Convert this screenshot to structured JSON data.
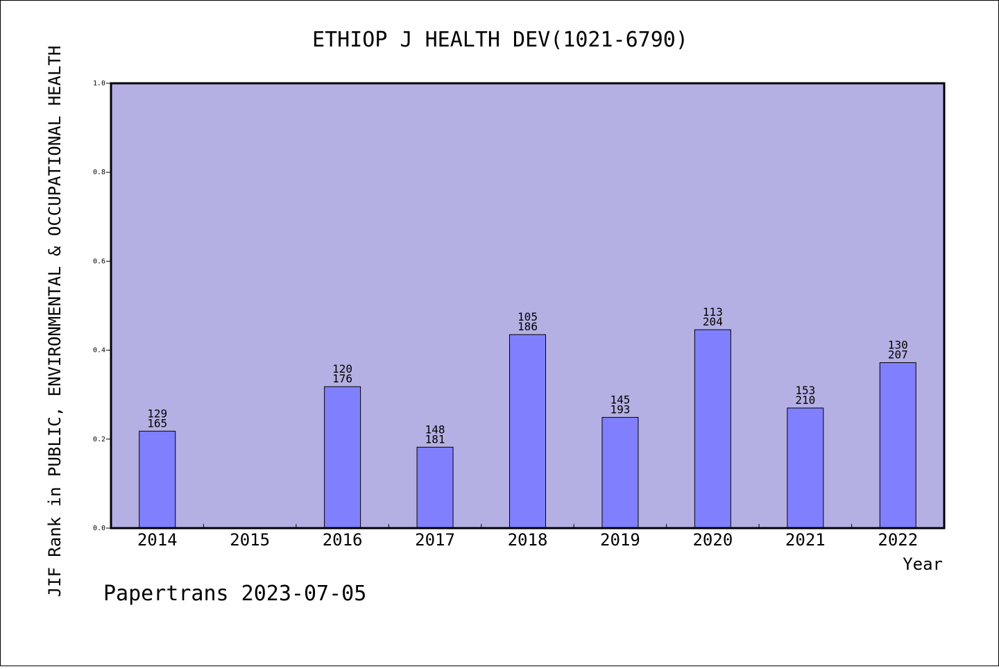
{
  "chart_data": {
    "type": "bar",
    "title": "ETHIOP J HEALTH DEV(1021-6790)",
    "xlabel": "Year",
    "ylabel": "JIF Rank in PUBLIC, ENVIRONMENTAL & OCCUPATIONAL HEALTH",
    "footer": "Papertrans 2023-07-05",
    "ylim": [
      0,
      1.0
    ],
    "yticks": [
      "0.0",
      "0.2",
      "0.4",
      "0.6",
      "0.8",
      "1.0"
    ],
    "categories": [
      "2014",
      "2015",
      "2016",
      "2017",
      "2018",
      "2019",
      "2020",
      "2021",
      "2022"
    ],
    "values": [
      0.218,
      null,
      0.318,
      0.182,
      0.435,
      0.249,
      0.446,
      0.27,
      0.372
    ],
    "rank": [
      "129",
      null,
      "120",
      "148",
      "105",
      "145",
      "113",
      "153",
      "130"
    ],
    "total": [
      "165",
      null,
      "176",
      "181",
      "186",
      "193",
      "204",
      "210",
      "207"
    ],
    "grid": false,
    "colors": {
      "plot_background": "#b5b0e3",
      "bar_fill": "#8080ff",
      "bar_stroke": "#000000"
    }
  }
}
